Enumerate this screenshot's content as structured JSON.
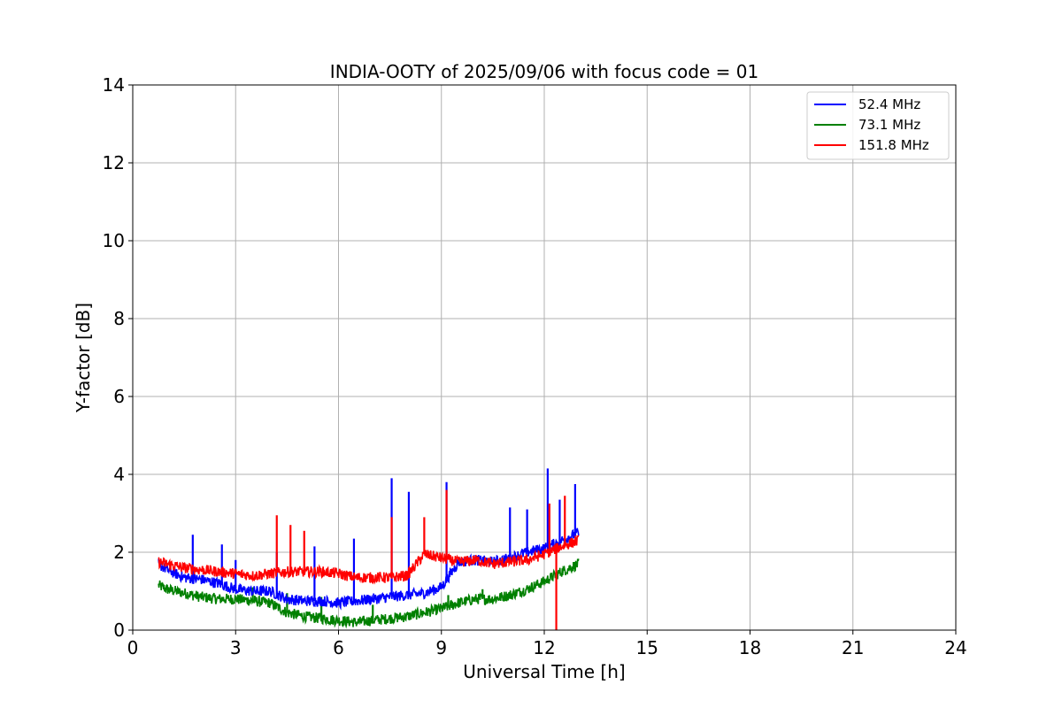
{
  "chart_data": {
    "type": "line",
    "title": "INDIA-OOTY of 2025/09/06 with focus code = 01",
    "xlabel": "Universal Time [h]",
    "ylabel": "Y-factor [dB]",
    "xlim": [
      0,
      24
    ],
    "ylim": [
      0,
      14
    ],
    "xticks": [
      0,
      3,
      6,
      9,
      12,
      15,
      18,
      21,
      24
    ],
    "yticks": [
      0,
      2,
      4,
      6,
      8,
      10,
      12,
      14
    ],
    "grid": true,
    "legend_position": "top-right",
    "series": [
      {
        "name": "52.4 MHz",
        "color": "#0000ff",
        "x": [
          0.75,
          1.0,
          1.5,
          2.0,
          2.5,
          3.0,
          3.5,
          4.0,
          4.5,
          5.0,
          5.5,
          6.0,
          6.5,
          7.0,
          7.5,
          8.0,
          8.5,
          9.0,
          9.5,
          10.0,
          10.5,
          11.0,
          11.5,
          12.0,
          12.5,
          13.0
        ],
        "values": [
          1.7,
          1.55,
          1.35,
          1.3,
          1.2,
          1.05,
          1.0,
          1.0,
          0.8,
          0.75,
          0.75,
          0.7,
          0.75,
          0.8,
          0.85,
          0.9,
          0.95,
          1.1,
          1.75,
          1.8,
          1.75,
          1.85,
          2.0,
          2.1,
          2.3,
          2.5
        ],
        "spikes": [
          [
            1.75,
            2.45
          ],
          [
            2.6,
            2.2
          ],
          [
            3.0,
            1.8
          ],
          [
            4.2,
            2.0
          ],
          [
            5.3,
            2.15
          ],
          [
            6.45,
            2.35
          ],
          [
            7.55,
            3.9
          ],
          [
            8.05,
            3.55
          ],
          [
            9.15,
            3.8
          ],
          [
            11.0,
            3.15
          ],
          [
            11.5,
            3.1
          ],
          [
            12.1,
            4.15
          ],
          [
            12.45,
            3.35
          ],
          [
            12.9,
            3.75
          ]
        ]
      },
      {
        "name": "73.1 MHz",
        "color": "#008000",
        "x": [
          0.75,
          1.0,
          1.5,
          2.0,
          2.5,
          3.0,
          3.5,
          4.0,
          4.5,
          5.0,
          5.5,
          6.0,
          6.5,
          7.0,
          7.5,
          8.0,
          8.5,
          9.0,
          9.5,
          10.0,
          10.5,
          11.0,
          11.5,
          12.0,
          12.5,
          13.0
        ],
        "values": [
          1.15,
          1.05,
          0.95,
          0.85,
          0.8,
          0.8,
          0.75,
          0.7,
          0.45,
          0.35,
          0.3,
          0.25,
          0.2,
          0.25,
          0.3,
          0.35,
          0.45,
          0.55,
          0.7,
          0.8,
          0.8,
          0.9,
          1.05,
          1.25,
          1.5,
          1.7
        ],
        "spikes": [
          [
            3.5,
            1.1
          ],
          [
            4.5,
            0.95
          ],
          [
            5.5,
            0.85
          ],
          [
            7.0,
            0.65
          ],
          [
            9.2,
            0.9
          ],
          [
            10.2,
            1.05
          ]
        ]
      },
      {
        "name": "151.8 MHz",
        "color": "#ff0000",
        "x": [
          0.75,
          1.0,
          1.5,
          2.0,
          2.5,
          3.0,
          3.5,
          4.0,
          4.5,
          5.0,
          5.5,
          6.0,
          6.5,
          7.0,
          7.5,
          8.0,
          8.5,
          9.0,
          9.5,
          10.0,
          10.5,
          11.0,
          11.5,
          12.0,
          12.5,
          13.0
        ],
        "values": [
          1.75,
          1.7,
          1.6,
          1.55,
          1.5,
          1.45,
          1.4,
          1.45,
          1.5,
          1.5,
          1.5,
          1.45,
          1.35,
          1.35,
          1.35,
          1.4,
          1.95,
          1.85,
          1.75,
          1.8,
          1.7,
          1.75,
          1.8,
          1.95,
          2.15,
          2.3
        ],
        "spikes": [
          [
            4.2,
            2.95
          ],
          [
            4.6,
            2.7
          ],
          [
            5.0,
            2.55
          ],
          [
            7.55,
            2.9
          ],
          [
            8.5,
            2.9
          ],
          [
            9.15,
            3.6
          ],
          [
            12.15,
            3.25
          ],
          [
            12.6,
            3.45
          ],
          [
            12.35,
            0.0
          ]
        ]
      }
    ]
  }
}
